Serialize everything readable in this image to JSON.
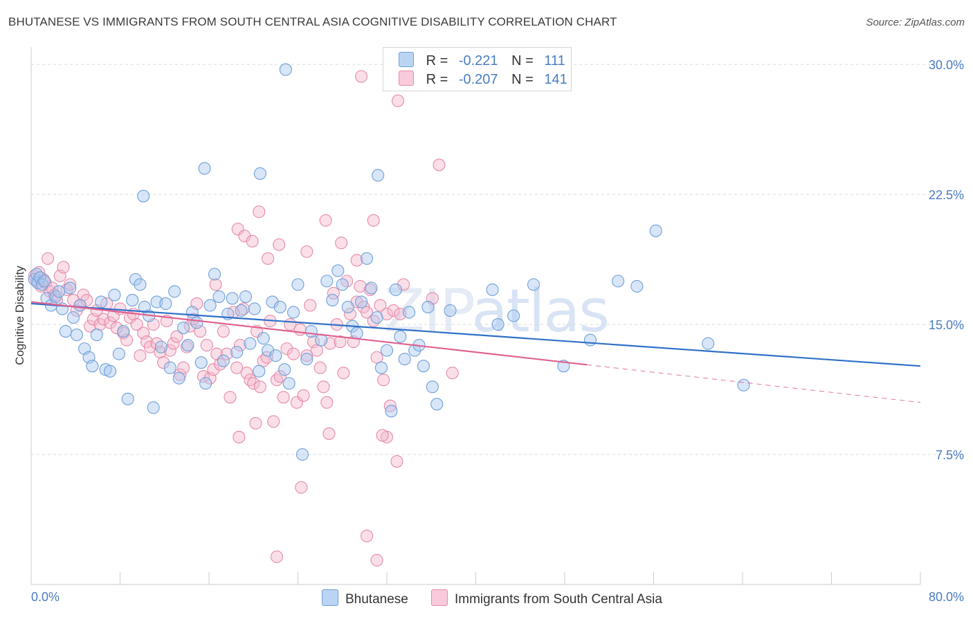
{
  "title": "BHUTANESE VS IMMIGRANTS FROM SOUTH CENTRAL ASIA COGNITIVE DISABILITY CORRELATION CHART",
  "source": "Source: ZipAtlas.com",
  "watermark": "ZIPatlas",
  "legend_top": [
    {
      "r_label": "R =",
      "r_value": "-0.221",
      "n_label": "N =",
      "n_value": "111"
    },
    {
      "r_label": "R =",
      "r_value": "-0.207",
      "n_label": "N =",
      "n_value": "141"
    }
  ],
  "colors": {
    "blue_fill": "#a9c8f0",
    "blue_stroke": "#6e9fd8",
    "blue_line": "#2f6fc8",
    "pink_fill": "#f4b8cc",
    "pink_stroke": "#e58aa8",
    "pink_line": "#e0608e",
    "grid": "#d9d9d9",
    "tick_label": "#4a7cc0"
  },
  "chart_data": {
    "type": "scatter",
    "title": "BHUTANESE VS IMMIGRANTS FROM SOUTH CENTRAL ASIA COGNITIVE DISABILITY CORRELATION CHART",
    "xlabel": "",
    "ylabel": "Cognitive Disability",
    "xlim": [
      0,
      80
    ],
    "ylim": [
      0,
      31
    ],
    "x_tick_labels": [
      "0.0%",
      "80.0%"
    ],
    "y_ticks": [
      7.5,
      15.0,
      22.5,
      30.0
    ],
    "y_tick_labels": [
      "7.5%",
      "15.0%",
      "22.5%",
      "30.0%"
    ],
    "grid": "horizontal dashed",
    "legend": "bottom-center",
    "series": [
      {
        "name": "Bhutanese",
        "r": -0.221,
        "n": 111,
        "trend": {
          "x0": 0,
          "y0": 16.2,
          "x1": 80,
          "y1": 12.6,
          "dashed_from": 80
        },
        "points": [
          [
            0.3,
            17.6
          ],
          [
            0.5,
            17.9
          ],
          [
            0.6,
            17.4
          ],
          [
            0.8,
            17.7
          ],
          [
            1.0,
            17.3
          ],
          [
            1.2,
            17.5
          ],
          [
            1.4,
            16.5
          ],
          [
            1.8,
            16.1
          ],
          [
            2.2,
            16.6
          ],
          [
            2.5,
            16.9
          ],
          [
            2.8,
            15.9
          ],
          [
            3.1,
            14.6
          ],
          [
            3.5,
            17.1
          ],
          [
            3.8,
            15.4
          ],
          [
            4.1,
            14.4
          ],
          [
            4.4,
            16.1
          ],
          [
            4.8,
            13.6
          ],
          [
            5.2,
            13.1
          ],
          [
            5.5,
            12.6
          ],
          [
            5.9,
            14.4
          ],
          [
            6.3,
            16.3
          ],
          [
            6.7,
            12.4
          ],
          [
            7.1,
            12.3
          ],
          [
            7.5,
            16.7
          ],
          [
            7.9,
            13.3
          ],
          [
            8.3,
            14.6
          ],
          [
            8.7,
            10.7
          ],
          [
            9.1,
            16.4
          ],
          [
            9.4,
            17.6
          ],
          [
            9.8,
            17.3
          ],
          [
            10.2,
            16.0
          ],
          [
            10.6,
            15.5
          ],
          [
            11.0,
            10.2
          ],
          [
            11.3,
            16.3
          ],
          [
            11.7,
            13.7
          ],
          [
            12.1,
            16.2
          ],
          [
            12.5,
            12.5
          ],
          [
            12.9,
            16.9
          ],
          [
            13.3,
            11.9
          ],
          [
            13.7,
            14.8
          ],
          [
            14.1,
            13.8
          ],
          [
            14.5,
            15.7
          ],
          [
            14.9,
            15.1
          ],
          [
            15.3,
            12.8
          ],
          [
            15.7,
            11.6
          ],
          [
            16.1,
            16.1
          ],
          [
            16.5,
            17.9
          ],
          [
            16.9,
            16.6
          ],
          [
            17.3,
            12.9
          ],
          [
            17.7,
            15.6
          ],
          [
            18.1,
            16.5
          ],
          [
            18.5,
            13.4
          ],
          [
            18.9,
            15.8
          ],
          [
            19.3,
            16.6
          ],
          [
            19.7,
            13.9
          ],
          [
            20.1,
            15.9
          ],
          [
            20.5,
            12.3
          ],
          [
            20.9,
            14.2
          ],
          [
            21.3,
            13.5
          ],
          [
            21.7,
            16.3
          ],
          [
            22.0,
            13.2
          ],
          [
            22.4,
            16.0
          ],
          [
            22.8,
            12.4
          ],
          [
            23.2,
            11.6
          ],
          [
            23.6,
            15.7
          ],
          [
            24.0,
            17.3
          ],
          [
            24.4,
            7.5
          ],
          [
            24.8,
            13.0
          ],
          [
            25.2,
            14.6
          ],
          [
            26.1,
            14.1
          ],
          [
            26.6,
            17.5
          ],
          [
            27.1,
            16.4
          ],
          [
            27.6,
            18.1
          ],
          [
            28.0,
            17.3
          ],
          [
            28.5,
            16.0
          ],
          [
            28.9,
            14.9
          ],
          [
            29.3,
            14.5
          ],
          [
            29.7,
            16.3
          ],
          [
            30.2,
            18.8
          ],
          [
            30.6,
            17.1
          ],
          [
            31.1,
            15.4
          ],
          [
            31.5,
            12.5
          ],
          [
            32.0,
            13.5
          ],
          [
            32.4,
            10.0
          ],
          [
            32.8,
            17.0
          ],
          [
            33.2,
            14.3
          ],
          [
            33.6,
            13.0
          ],
          [
            34.0,
            15.7
          ],
          [
            34.5,
            13.5
          ],
          [
            34.9,
            13.8
          ],
          [
            35.3,
            12.6
          ],
          [
            35.7,
            16.0
          ],
          [
            36.1,
            11.4
          ],
          [
            36.5,
            10.4
          ],
          [
            37.7,
            15.8
          ],
          [
            22.9,
            29.7
          ],
          [
            10.1,
            22.4
          ],
          [
            15.6,
            24.0
          ],
          [
            20.6,
            23.7
          ],
          [
            31.2,
            23.6
          ],
          [
            41.5,
            17.0
          ],
          [
            42.0,
            15.0
          ],
          [
            43.4,
            15.5
          ],
          [
            45.2,
            17.3
          ],
          [
            47.9,
            12.6
          ],
          [
            50.3,
            14.1
          ],
          [
            52.8,
            17.5
          ],
          [
            54.5,
            17.2
          ],
          [
            56.2,
            20.4
          ],
          [
            60.9,
            13.9
          ],
          [
            64.1,
            11.5
          ]
        ]
      },
      {
        "name": "Immigrants from South Central Asia",
        "r": -0.207,
        "n": 141,
        "trend": {
          "x0": 0,
          "y0": 16.3,
          "x1": 80,
          "y1": 10.5,
          "solid_until": 50
        },
        "points": [
          [
            0.3,
            17.8
          ],
          [
            0.5,
            17.5
          ],
          [
            0.7,
            18.0
          ],
          [
            0.9,
            17.2
          ],
          [
            1.1,
            17.6
          ],
          [
            1.3,
            17.4
          ],
          [
            1.5,
            18.8
          ],
          [
            1.7,
            16.9
          ],
          [
            1.9,
            17.1
          ],
          [
            2.1,
            16.7
          ],
          [
            2.3,
            16.4
          ],
          [
            2.6,
            17.8
          ],
          [
            2.9,
            18.3
          ],
          [
            3.2,
            17.0
          ],
          [
            3.5,
            17.3
          ],
          [
            3.8,
            16.4
          ],
          [
            4.1,
            15.8
          ],
          [
            4.4,
            16.1
          ],
          [
            4.7,
            16.7
          ],
          [
            5.0,
            16.4
          ],
          [
            5.3,
            14.9
          ],
          [
            5.6,
            15.3
          ],
          [
            5.9,
            15.8
          ],
          [
            6.2,
            15.0
          ],
          [
            6.5,
            15.3
          ],
          [
            6.8,
            16.2
          ],
          [
            7.1,
            15.1
          ],
          [
            7.4,
            15.5
          ],
          [
            7.7,
            14.8
          ],
          [
            8.0,
            15.9
          ],
          [
            8.3,
            14.5
          ],
          [
            8.6,
            14.1
          ],
          [
            8.9,
            15.4
          ],
          [
            9.2,
            15.6
          ],
          [
            9.5,
            15.0
          ],
          [
            9.8,
            13.2
          ],
          [
            10.1,
            14.5
          ],
          [
            10.4,
            14.0
          ],
          [
            10.7,
            13.7
          ],
          [
            11.0,
            15.0
          ],
          [
            11.3,
            13.9
          ],
          [
            11.6,
            13.4
          ],
          [
            11.9,
            12.8
          ],
          [
            12.2,
            15.2
          ],
          [
            12.5,
            13.5
          ],
          [
            12.8,
            13.9
          ],
          [
            13.1,
            14.3
          ],
          [
            13.4,
            12.1
          ],
          [
            13.7,
            12.5
          ],
          [
            14.0,
            13.7
          ],
          [
            14.3,
            14.9
          ],
          [
            14.6,
            15.3
          ],
          [
            14.9,
            16.2
          ],
          [
            15.2,
            14.6
          ],
          [
            15.5,
            12.0
          ],
          [
            15.8,
            13.8
          ],
          [
            16.1,
            11.9
          ],
          [
            16.4,
            12.4
          ],
          [
            16.7,
            13.3
          ],
          [
            17.0,
            12.7
          ],
          [
            17.3,
            14.6
          ],
          [
            17.6,
            13.3
          ],
          [
            17.9,
            10.8
          ],
          [
            18.2,
            15.7
          ],
          [
            18.5,
            12.5
          ],
          [
            18.8,
            13.8
          ],
          [
            19.1,
            15.9
          ],
          [
            19.4,
            12.2
          ],
          [
            19.7,
            11.8
          ],
          [
            20.0,
            11.6
          ],
          [
            20.3,
            14.6
          ],
          [
            20.6,
            11.4
          ],
          [
            20.9,
            12.9
          ],
          [
            21.2,
            13.1
          ],
          [
            21.5,
            15.2
          ],
          [
            21.8,
            9.4
          ],
          [
            22.1,
            11.8
          ],
          [
            22.4,
            12.0
          ],
          [
            22.7,
            10.8
          ],
          [
            23.0,
            13.6
          ],
          [
            23.3,
            15.0
          ],
          [
            23.6,
            13.3
          ],
          [
            23.9,
            10.5
          ],
          [
            24.2,
            14.7
          ],
          [
            24.5,
            10.9
          ],
          [
            24.8,
            13.2
          ],
          [
            25.1,
            16.1
          ],
          [
            25.4,
            14.0
          ],
          [
            25.7,
            13.5
          ],
          [
            26.0,
            12.5
          ],
          [
            26.3,
            11.4
          ],
          [
            26.6,
            10.5
          ],
          [
            26.9,
            13.9
          ],
          [
            27.2,
            16.8
          ],
          [
            27.5,
            15.0
          ],
          [
            27.8,
            14.0
          ],
          [
            28.1,
            12.2
          ],
          [
            28.4,
            17.5
          ],
          [
            28.7,
            15.6
          ],
          [
            29.0,
            14.0
          ],
          [
            29.3,
            16.3
          ],
          [
            29.6,
            17.2
          ],
          [
            29.9,
            16.0
          ],
          [
            30.2,
            15.7
          ],
          [
            30.5,
            17.0
          ],
          [
            30.8,
            15.2
          ],
          [
            31.1,
            13.1
          ],
          [
            31.4,
            16.1
          ],
          [
            31.7,
            11.8
          ],
          [
            32.0,
            15.6
          ],
          [
            32.3,
            10.3
          ],
          [
            32.6,
            15.8
          ],
          [
            32.9,
            7.1
          ],
          [
            33.2,
            15.6
          ],
          [
            33.5,
            17.3
          ],
          [
            22.1,
            1.6
          ],
          [
            24.3,
            5.6
          ],
          [
            30.2,
            2.8
          ],
          [
            31.1,
            1.4
          ],
          [
            32.0,
            8.5
          ],
          [
            16.6,
            17.3
          ],
          [
            18.6,
            20.5
          ],
          [
            19.2,
            20.1
          ],
          [
            19.9,
            19.8
          ],
          [
            20.5,
            21.5
          ],
          [
            21.3,
            18.8
          ],
          [
            22.3,
            19.6
          ],
          [
            24.8,
            19.2
          ],
          [
            26.5,
            21.0
          ],
          [
            27.9,
            19.7
          ],
          [
            29.3,
            18.7
          ],
          [
            30.8,
            21.0
          ],
          [
            33.0,
            27.9
          ],
          [
            37.9,
            12.2
          ],
          [
            36.7,
            24.2
          ],
          [
            29.7,
            29.3
          ],
          [
            18.7,
            8.5
          ],
          [
            20.2,
            9.3
          ],
          [
            26.8,
            8.7
          ],
          [
            31.6,
            8.6
          ],
          [
            36.1,
            16.5
          ]
        ]
      }
    ]
  }
}
